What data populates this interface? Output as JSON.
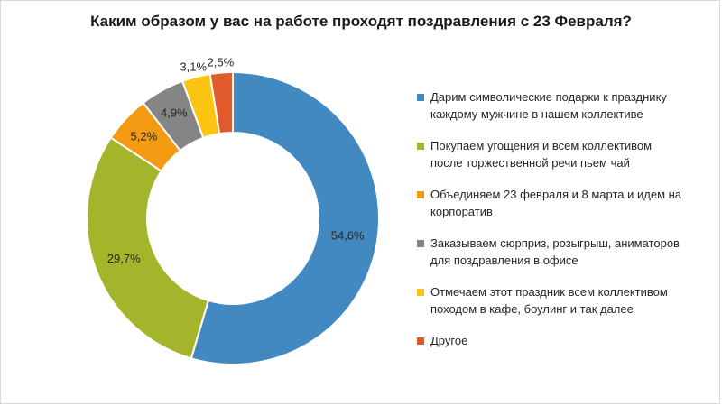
{
  "chart_data": {
    "type": "pie",
    "variant": "donut",
    "title": "Каким образом у вас на работе проходят поздравления с 23 Февраля?",
    "legend_position": "right",
    "slices": [
      {
        "label": "Дарим символические подарки к празднику\nкаждому мужчине в нашем коллективе",
        "value": 54.6,
        "display": "54,6%",
        "color": "#4189c0"
      },
      {
        "label": "Покупаем угощения и всем коллективом\nпосле торжественной речи пьем чай",
        "value": 29.7,
        "display": "29,7%",
        "color": "#a4b52b"
      },
      {
        "label": "Объединяем 23 февраля и 8 марта и идем на\nкорпоратив",
        "value": 5.2,
        "display": "5,2%",
        "color": "#f39a12"
      },
      {
        "label": "Заказываем сюрприз, розыгрыш, аниматоров\nдля поздравления в офисе",
        "value": 4.9,
        "display": "4,9%",
        "color": "#858585"
      },
      {
        "label": "Отмечаем этот праздник всем коллективом\nпоходом в кафе, боулинг и так далее",
        "value": 3.1,
        "display": "3,1%",
        "color": "#fbc412"
      },
      {
        "label": "Другое",
        "value": 2.5,
        "display": "2,5%",
        "color": "#e05a2b"
      }
    ]
  }
}
